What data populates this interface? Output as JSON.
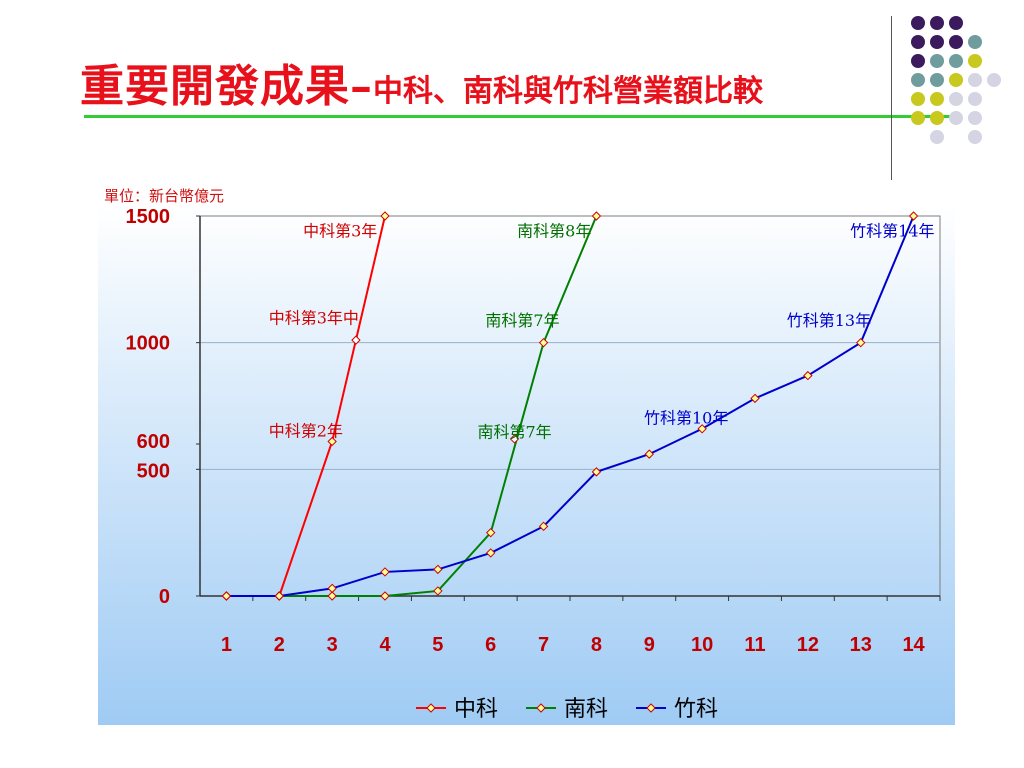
{
  "title": {
    "main": "重要開發成果",
    "dash": "–",
    "sub": "中科、南科與竹科營業額比較"
  },
  "unit_label": "單位：新台幣億元",
  "colors": {
    "title": "#e8101a",
    "rule": "#33cc33",
    "series_中科": "#ff0000",
    "series_南科": "#008000",
    "series_竹科": "#0000cc",
    "marker_fill": "#ffff99",
    "marker_stroke": "#cc0000",
    "dot_purple": "#3b1a5e",
    "dot_teal": "#6f9c9c",
    "dot_olive": "#c8c81e",
    "dot_lavender": "#d4d4e2"
  },
  "chart_data": {
    "type": "line",
    "title": "",
    "xlabel": "",
    "ylabel": "",
    "categories": [
      "1",
      "2",
      "3",
      "4",
      "5",
      "6",
      "7",
      "8",
      "9",
      "10",
      "11",
      "12",
      "13",
      "14"
    ],
    "y_tick_labels": [
      "0",
      "500",
      "600",
      "1000",
      "1500"
    ],
    "y_tick_values": [
      0,
      500,
      600,
      1000,
      1500
    ],
    "ylim": [
      0,
      1500
    ],
    "grid": "horizontal",
    "legend_position": "bottom",
    "series": [
      {
        "name": "中科",
        "color": "#ff0000",
        "points": [
          [
            1,
            0
          ],
          [
            2,
            0
          ],
          [
            3,
            610
          ],
          [
            4,
            1500
          ]
        ]
      },
      {
        "name": "南科",
        "color": "#008000",
        "points": [
          [
            1,
            0
          ],
          [
            2,
            0
          ],
          [
            3,
            0
          ],
          [
            4,
            0
          ],
          [
            5,
            20
          ],
          [
            6,
            250
          ],
          [
            7,
            1000
          ],
          [
            8,
            1500
          ]
        ]
      },
      {
        "name": "竹科",
        "color": "#0000cc",
        "points": [
          [
            1,
            0
          ],
          [
            2,
            0
          ],
          [
            3,
            30
          ],
          [
            4,
            95
          ],
          [
            5,
            105
          ],
          [
            6,
            170
          ],
          [
            7,
            275
          ],
          [
            8,
            490
          ],
          [
            9,
            560
          ],
          [
            10,
            660
          ],
          [
            11,
            780
          ],
          [
            12,
            870
          ],
          [
            13,
            1000
          ],
          [
            14,
            1500
          ]
        ]
      }
    ],
    "extra_markers": [
      {
        "x": 3.45,
        "y": 1010
      },
      {
        "x": 6.45,
        "y": 620
      }
    ],
    "annotations": [
      {
        "text": "中科第3年",
        "color": "#d00000",
        "x": 2.45,
        "y": 1420
      },
      {
        "text": "中科第3年中",
        "color": "#d00000",
        "x": 1.8,
        "y": 1075
      },
      {
        "text": "中科第2年",
        "color": "#d00000",
        "x": 1.8,
        "y": 630
      },
      {
        "text": "南科第8年",
        "color": "#007000",
        "x": 6.5,
        "y": 1420
      },
      {
        "text": "南科第7年",
        "color": "#007000",
        "x": 5.9,
        "y": 1065
      },
      {
        "text": "南科第7年",
        "color": "#007000",
        "x": 5.75,
        "y": 625
      },
      {
        "text": "竹科第14年",
        "color": "#0000cc",
        "x": 12.8,
        "y": 1420
      },
      {
        "text": "竹科第13年",
        "color": "#0000cc",
        "x": 11.6,
        "y": 1065
      },
      {
        "text": "竹科第10年",
        "color": "#0000cc",
        "x": 8.9,
        "y": 680
      }
    ]
  }
}
